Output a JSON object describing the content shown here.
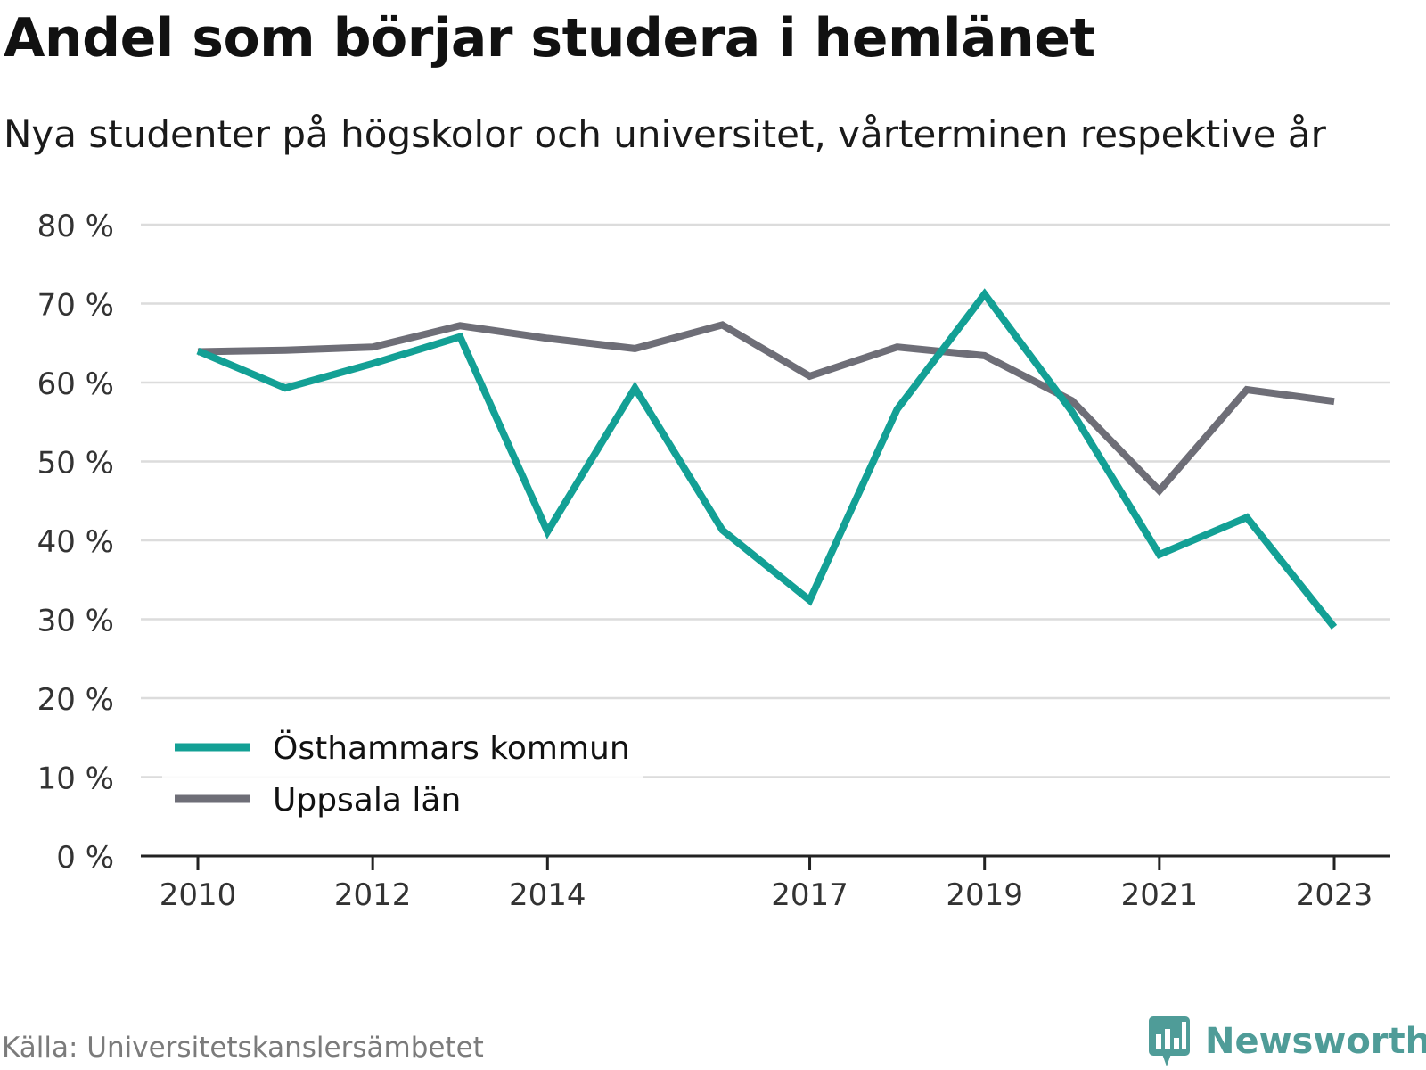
{
  "title": "Andel som börjar studera i hemlänet",
  "subtitle": "Nya studenter på högskolor och universitet, vårterminen respektive år",
  "source": "Källa: Universitetskanslersämbetet",
  "brand": {
    "name": "Newsworthy",
    "icon": "newsworthy-logo-icon",
    "color": "#4f9c98"
  },
  "chart_data": {
    "type": "line",
    "title": "Andel som börjar studera i hemlänet",
    "subtitle": "Nya studenter på högskolor och universitet, vårterminen respektive år",
    "x": [
      2010,
      2011,
      2012,
      2013,
      2014,
      2015,
      2016,
      2017,
      2018,
      2019,
      2020,
      2021,
      2022,
      2023
    ],
    "x_tick_labels": [
      "2010",
      "2012",
      "2014",
      "2017",
      "2019",
      "2021",
      "2023"
    ],
    "x_tick_values": [
      2010,
      2012,
      2014,
      2017,
      2019,
      2021,
      2023
    ],
    "ylim": [
      0,
      80
    ],
    "y_ticks": [
      0,
      10,
      20,
      30,
      40,
      50,
      60,
      70,
      80
    ],
    "y_tick_labels": [
      "0 %",
      "10 %",
      "20 %",
      "30 %",
      "40 %",
      "50 %",
      "60 %",
      "70 %",
      "80 %"
    ],
    "grid": true,
    "legend_position": "bottom-left",
    "series": [
      {
        "name": "Östhammars kommun",
        "color": "#13a095",
        "values": [
          64,
          59.3,
          62.4,
          65.8,
          41.1,
          59.3,
          41.3,
          32.4,
          56.6,
          71.2,
          56.3,
          38.2,
          42.9,
          29.0
        ]
      },
      {
        "name": "Uppsala län",
        "color": "#6e6e77",
        "values": [
          63.9,
          64.1,
          64.5,
          67.2,
          65.6,
          64.3,
          67.3,
          60.8,
          64.5,
          63.4,
          57.7,
          46.3,
          59.1,
          57.6
        ]
      }
    ]
  }
}
